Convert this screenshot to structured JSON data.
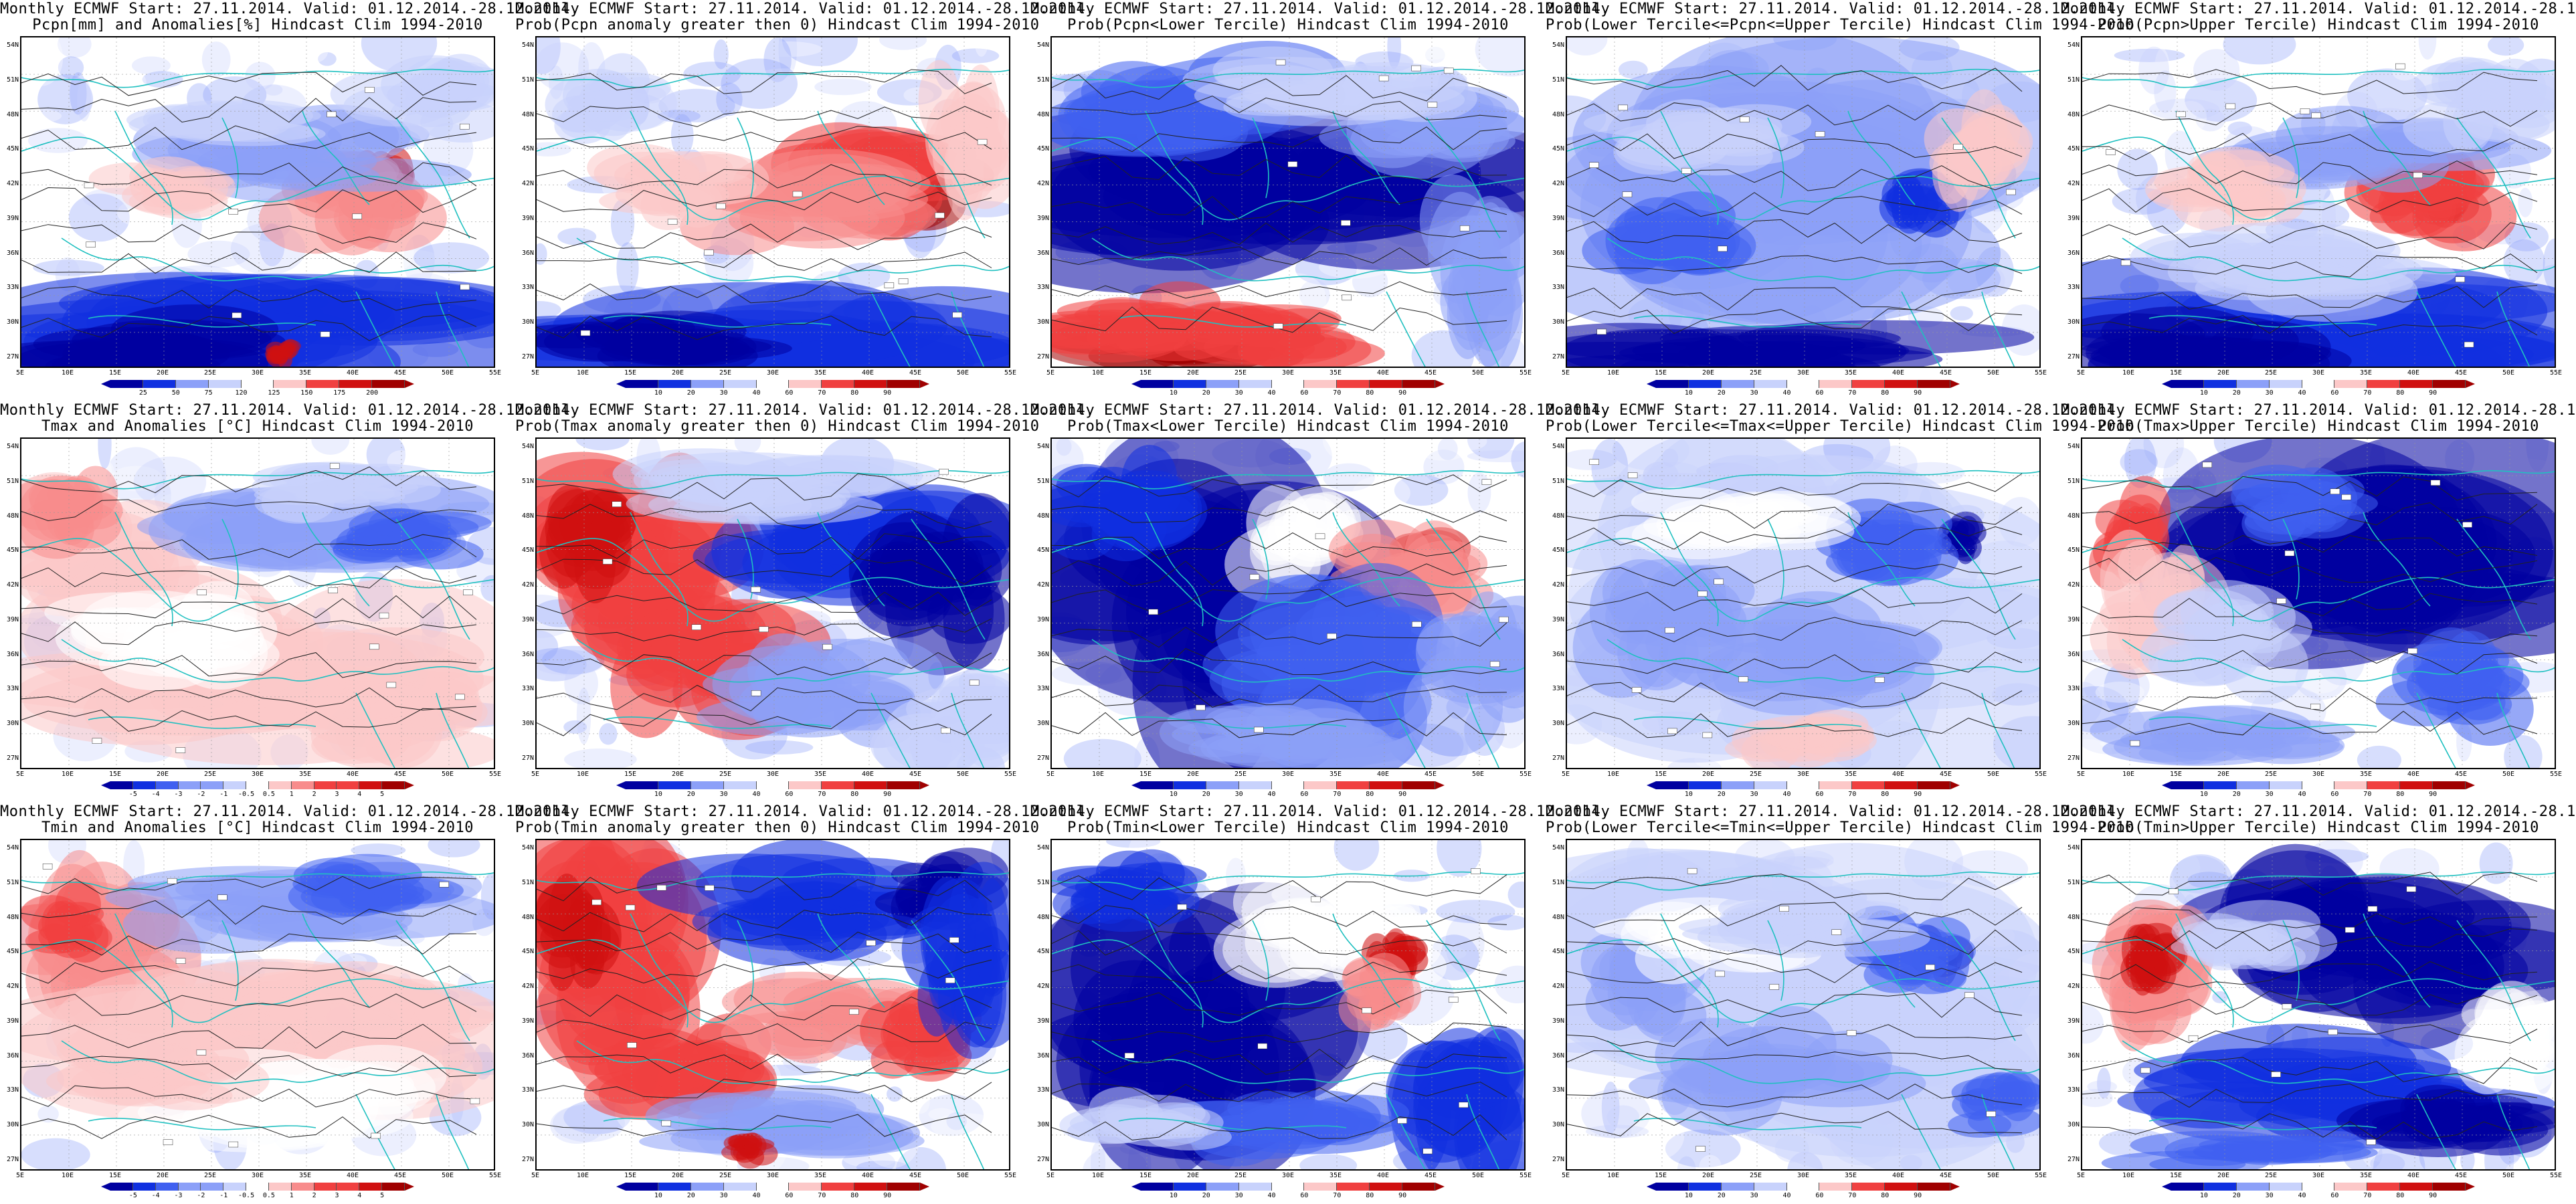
{
  "title_line1": "Monthly ECMWF Start: 27.11.2014. Valid: 01.12.2014.-28.12.2014.",
  "panels": [
    {
      "row": 0,
      "col": 0,
      "subtitle": "Pcpn[mm] and Anomalies[%] Hindcast Clim 1994-2010",
      "scale": "anom",
      "ticks": [
        "25",
        "50",
        "75",
        "120",
        "125",
        "150",
        "175",
        "200"
      ],
      "pattern": "pcpn_anom"
    },
    {
      "row": 0,
      "col": 1,
      "subtitle": "Prob(Pcpn anomaly greater then 0) Hindcast Clim 1994-2010",
      "scale": "prob",
      "ticks": [
        "10",
        "20",
        "30",
        "40",
        "60",
        "70",
        "80",
        "90"
      ],
      "pattern": "pcpn_pos"
    },
    {
      "row": 0,
      "col": 2,
      "subtitle": "Prob(Pcpn<Lower Tercile) Hindcast Clim 1994-2010",
      "scale": "prob",
      "ticks": [
        "10",
        "20",
        "30",
        "40",
        "60",
        "70",
        "80",
        "90"
      ],
      "pattern": "pcpn_low"
    },
    {
      "row": 0,
      "col": 3,
      "subtitle": "Prob(Lower Tercile<=Pcpn<=Upper Tercile) Hindcast Clim 1994-2010",
      "scale": "prob",
      "ticks": [
        "10",
        "20",
        "30",
        "40",
        "60",
        "70",
        "80",
        "90"
      ],
      "pattern": "pcpn_mid"
    },
    {
      "row": 0,
      "col": 4,
      "subtitle": "Prob(Pcpn>Upper Tercile) Hindcast Clim 1994-2010",
      "scale": "prob",
      "ticks": [
        "10",
        "20",
        "30",
        "40",
        "60",
        "70",
        "80",
        "90"
      ],
      "pattern": "pcpn_up"
    },
    {
      "row": 1,
      "col": 0,
      "subtitle": "Tmax and Anomalies [°C] Hindcast Clim 1994-2010",
      "scale": "tanom",
      "ticks": [
        "-5",
        "-4",
        "-3",
        "-2",
        "-1",
        "-0.5",
        "0.5",
        "1",
        "2",
        "3",
        "4",
        "5"
      ],
      "pattern": "tmax_anom"
    },
    {
      "row": 1,
      "col": 1,
      "subtitle": "Prob(Tmax anomaly greater then 0) Hindcast Clim 1994-2010",
      "scale": "prob",
      "ticks": [
        "10",
        "20",
        "30",
        "40",
        "60",
        "70",
        "80",
        "90"
      ],
      "pattern": "tmax_pos"
    },
    {
      "row": 1,
      "col": 2,
      "subtitle": "Prob(Tmax<Lower Tercile) Hindcast Clim 1994-2010",
      "scale": "prob",
      "ticks": [
        "10",
        "20",
        "30",
        "40",
        "60",
        "70",
        "80",
        "90"
      ],
      "pattern": "tmax_low"
    },
    {
      "row": 1,
      "col": 3,
      "subtitle": "Prob(Lower Tercile<=Tmax<=Upper Tercile) Hindcast Clim 1994-2010",
      "scale": "prob",
      "ticks": [
        "10",
        "20",
        "30",
        "40",
        "60",
        "70",
        "80",
        "90"
      ],
      "pattern": "tmax_mid"
    },
    {
      "row": 1,
      "col": 4,
      "subtitle": "Prob(Tmax>Upper Tercile) Hindcast Clim 1994-2010",
      "scale": "prob",
      "ticks": [
        "10",
        "20",
        "30",
        "40",
        "60",
        "70",
        "80",
        "90"
      ],
      "pattern": "tmax_up"
    },
    {
      "row": 2,
      "col": 0,
      "subtitle": "Tmin and Anomalies [°C] Hindcast Clim 1994-2010",
      "scale": "tanom",
      "ticks": [
        "-5",
        "-4",
        "-3",
        "-2",
        "-1",
        "-0.5",
        "0.5",
        "1",
        "2",
        "3",
        "4",
        "5"
      ],
      "pattern": "tmin_anom"
    },
    {
      "row": 2,
      "col": 1,
      "subtitle": "Prob(Tmin anomaly greater then 0) Hindcast Clim 1994-2010",
      "scale": "prob",
      "ticks": [
        "10",
        "20",
        "30",
        "40",
        "60",
        "70",
        "80",
        "90"
      ],
      "pattern": "tmin_pos"
    },
    {
      "row": 2,
      "col": 2,
      "subtitle": "Prob(Tmin<Lower Tercile) Hindcast Clim 1994-2010",
      "scale": "prob",
      "ticks": [
        "10",
        "20",
        "30",
        "40",
        "60",
        "70",
        "80",
        "90"
      ],
      "pattern": "tmin_low"
    },
    {
      "row": 2,
      "col": 3,
      "subtitle": "Prob(Lower Tercile<=Tmin<=Upper Tercile) Hindcast Clim 1994-2010",
      "scale": "prob",
      "ticks": [
        "10",
        "20",
        "30",
        "40",
        "60",
        "70",
        "80",
        "90"
      ],
      "pattern": "tmin_mid"
    },
    {
      "row": 2,
      "col": 4,
      "subtitle": "Prob(Tmin>Upper Tercile) Hindcast Clim 1994-2010",
      "scale": "prob",
      "ticks": [
        "10",
        "20",
        "30",
        "40",
        "60",
        "70",
        "80",
        "90"
      ],
      "pattern": "tmin_up"
    }
  ],
  "lat_labels": [
    "54N",
    "51N",
    "48N",
    "45N",
    "42N",
    "39N",
    "36N",
    "33N",
    "30N",
    "27N"
  ],
  "lon_labels": [
    "5E",
    "10E",
    "15E",
    "20E",
    "25E",
    "30E",
    "35E",
    "40E",
    "45E",
    "50E",
    "55E"
  ],
  "colors": {
    "coast": "#20c0c0",
    "contour": "#222222",
    "prob_scale": [
      "#0000a0",
      "#1030e0",
      "#4060f0",
      "#8ca0f8",
      "#c8d2fc",
      "#ffffff",
      "#fcc8c8",
      "#f88c8c",
      "#f04040",
      "#d01010",
      "#a00000"
    ],
    "anom_scale": [
      "#0000a0",
      "#1030e0",
      "#4060f0",
      "#8ca0f8",
      "#c8d2fc",
      "#ffffff",
      "#fcc8c8",
      "#f88c8c",
      "#f04040",
      "#d01010",
      "#a00000"
    ]
  }
}
